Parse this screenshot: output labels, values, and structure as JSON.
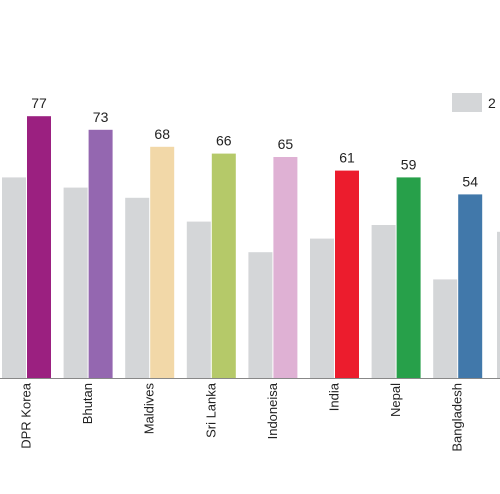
{
  "chart_data": {
    "type": "bar",
    "categories": [
      "DPR Korea",
      "Bhutan",
      "Maldives",
      "Sri Lanka",
      "Indoneisa",
      "India",
      "Nepal",
      "Bangladesh"
    ],
    "series": [
      {
        "name": "2",
        "values": [
          59,
          56,
          53,
          46,
          37,
          41,
          45,
          29
        ]
      },
      {
        "values": [
          77,
          73,
          68,
          66,
          65,
          61,
          59,
          54
        ]
      }
    ],
    "partial_next_bar_value": 43,
    "data_labels": [
      "77",
      "73",
      "68",
      "66",
      "65",
      "61",
      "59",
      "54"
    ],
    "colors": {
      "comparison": "#d4d6d8",
      "bars": [
        "#9b2080",
        "#9467b0",
        "#f2d8a8",
        "#b5c969",
        "#dfb1d4",
        "#ec1c2d",
        "#27a04a",
        "#4178aa"
      ],
      "axis": "#888888"
    },
    "ylim": [
      0,
      100
    ],
    "legend": {
      "position": "top-right",
      "label": "2"
    },
    "grid": false
  }
}
